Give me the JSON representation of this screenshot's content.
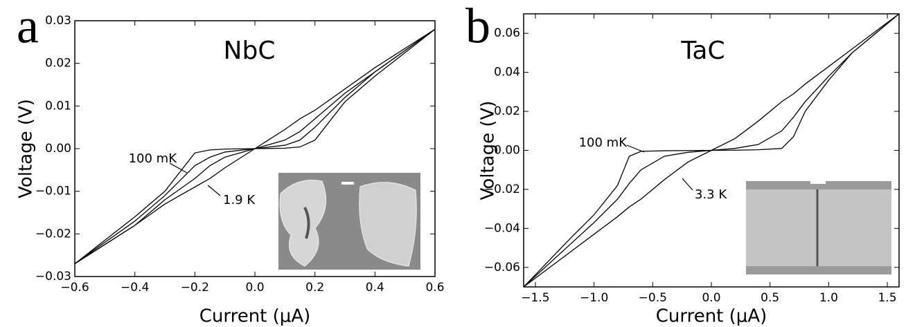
{
  "chart_data": [
    {
      "type": "line",
      "panel": "a",
      "title": "NbC",
      "x_label": "Current (μA)",
      "y_label": "Voltage (V)",
      "annotations": [
        "100 mK",
        "1.9 K"
      ],
      "x": [
        -0.6,
        -0.4,
        -0.3,
        -0.2,
        -0.15,
        -0.1,
        0,
        0.1,
        0.15,
        0.2,
        0.3,
        0.4,
        0.6
      ],
      "series": [
        {
          "color": "#000000",
          "values": [
            -0.027,
            -0.016,
            -0.01,
            -0.001,
            -0.0003,
            -0.0001,
            0,
            0.0001,
            0.0004,
            0.002,
            0.011,
            0.017,
            0.028
          ]
        },
        {
          "color": "#000000",
          "values": [
            -0.027,
            -0.017,
            -0.011,
            -0.004,
            -0.002,
            -0.0008,
            0,
            0.0008,
            0.002,
            0.005,
            0.012,
            0.018,
            0.028
          ]
        },
        {
          "color": "#000000",
          "values": [
            -0.027,
            -0.018,
            -0.012,
            -0.007,
            -0.004,
            -0.002,
            0,
            0.002,
            0.004,
            0.007,
            0.013,
            0.018,
            0.028
          ]
        },
        {
          "color": "#000000",
          "values": [
            -0.027,
            -0.018,
            -0.013,
            -0.009,
            -0.007,
            -0.0045,
            0,
            0.0045,
            0.007,
            0.009,
            0.014,
            0.019,
            0.028
          ]
        }
      ],
      "xlim": [
        -0.6,
        0.6
      ],
      "xticks": [
        {
          "value": -0.6,
          "label": "−0.6"
        },
        {
          "value": -0.4,
          "label": "−0.4"
        },
        {
          "value": -0.2,
          "label": "−0.2"
        },
        {
          "value": 0,
          "label": "0.0"
        },
        0.2,
        0.4,
        0.6
      ],
      "ylim": [
        -0.03,
        0.03
      ],
      "yticks": [
        {
          "value": -0.03,
          "label": "−0.03"
        },
        {
          "value": -0.02,
          "label": "−0.02"
        },
        {
          "value": -0.01,
          "label": "−0.01"
        },
        {
          "value": 0,
          "label": "0.00"
        },
        0.01,
        0.02,
        0.03
      ]
    },
    {
      "type": "line",
      "panel": "b",
      "title": "TaC",
      "x_label": "Current (μA)",
      "y_label": "Voltage (V)",
      "annotations": [
        "100 mK",
        "3.3 K"
      ],
      "x": [
        -1.6,
        -1.2,
        -1.0,
        -0.8,
        -0.7,
        -0.6,
        -0.4,
        -0.2,
        0,
        0.2,
        0.4,
        0.6,
        0.7,
        0.8,
        1.0,
        1.2,
        1.6
      ],
      "series": [
        {
          "color": "#000000",
          "values": [
            -0.07,
            -0.045,
            -0.033,
            -0.018,
            -0.003,
            -0.0005,
            -0.0002,
            -0.0001,
            0,
            0.0001,
            0.0003,
            0.001,
            0.007,
            0.02,
            0.036,
            0.05,
            0.07
          ]
        },
        {
          "color": "#000000",
          "values": [
            -0.07,
            -0.048,
            -0.037,
            -0.025,
            -0.017,
            -0.01,
            -0.003,
            -0.001,
            0,
            0.001,
            0.003,
            0.01,
            0.017,
            0.025,
            0.038,
            0.05,
            0.07
          ]
        },
        {
          "color": "#000000",
          "values": [
            -0.07,
            -0.052,
            -0.043,
            -0.034,
            -0.029,
            -0.025,
            -0.015,
            -0.006,
            0,
            0.006,
            0.015,
            0.025,
            0.029,
            0.034,
            0.043,
            0.052,
            0.07
          ]
        }
      ],
      "xlim": [
        -1.6,
        1.6
      ],
      "xticks": [
        {
          "value": -1.5,
          "label": "−1.5"
        },
        {
          "value": -1.0,
          "label": "−1.0"
        },
        {
          "value": -0.5,
          "label": "−0.5"
        },
        {
          "value": 0,
          "label": "0.0"
        },
        0.5,
        {
          "value": 1.0,
          "label": "1.0"
        },
        1.5
      ],
      "ylim": [
        -0.07,
        0.07
      ],
      "yticks": [
        {
          "value": -0.06,
          "label": "−0.06"
        },
        {
          "value": -0.04,
          "label": "−0.04"
        },
        {
          "value": -0.02,
          "label": "−0.02"
        },
        {
          "value": 0,
          "label": "0.00"
        },
        0.02,
        0.04,
        0.06
      ]
    }
  ]
}
